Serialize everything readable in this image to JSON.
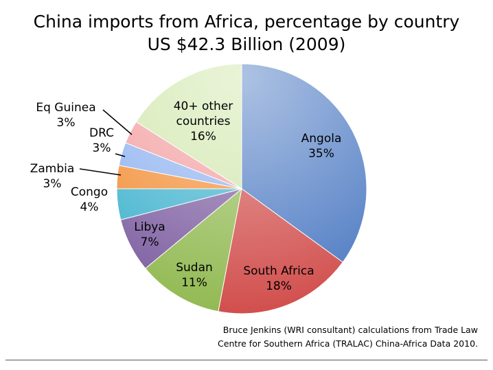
{
  "chart_data": {
    "type": "pie",
    "title": "China imports from Africa, percentage by country",
    "subtitle": "US $42.3 Billion (2009)",
    "slices": [
      {
        "label": "Angola",
        "value": 35,
        "value_label": "35%",
        "color": "#4a78c2"
      },
      {
        "label": "South Africa",
        "value": 18,
        "value_label": "18%",
        "color": "#d04a48"
      },
      {
        "label": "Sudan",
        "value": 11,
        "value_label": "11%",
        "color": "#8fb84e"
      },
      {
        "label": "Libya",
        "value": 7,
        "value_label": "7%",
        "color": "#7a5a9e"
      },
      {
        "label": "Congo",
        "value": 4,
        "value_label": "4%",
        "color": "#3ab0cc"
      },
      {
        "label": "Zambia",
        "value": 3,
        "value_label": "3%",
        "color": "#f28a2e"
      },
      {
        "label": "DRC",
        "value": 3,
        "value_label": "3%",
        "color": "#8aaef0"
      },
      {
        "label": "Eq Guinea",
        "value": 3,
        "value_label": "3%",
        "color": "#f2999b"
      },
      {
        "label": "40+ other countries",
        "label_lines": [
          "40+ other",
          "countries"
        ],
        "value": 16,
        "value_label": "16%",
        "color": "#cfe6a8"
      }
    ]
  },
  "source": {
    "line1": "Bruce Jenkins (WRI consultant) calculations from Trade Law",
    "line2": "Centre for Southern Africa (TRALAC) China-Africa Data 2010."
  }
}
